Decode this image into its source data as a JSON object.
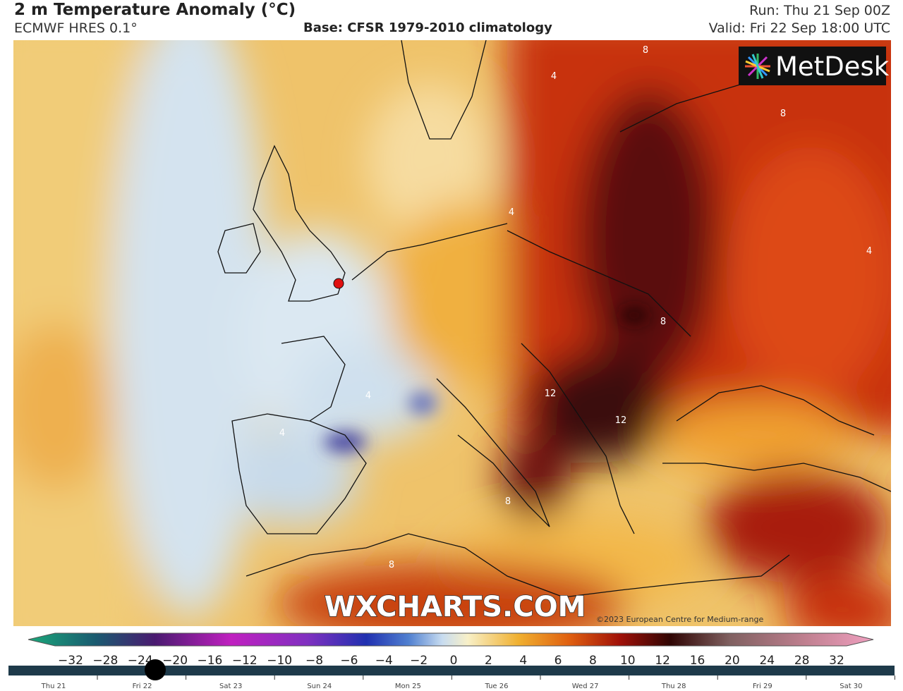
{
  "header": {
    "title": "2 m Temperature Anomaly (°C)",
    "model": "ECMWF HRES 0.1°",
    "base": "Base: CFSR 1979-2010 climatology",
    "run": "Run: Thu 21 Sep 00Z",
    "valid": "Valid: Fri 22 Sep 18:00 UTC"
  },
  "map": {
    "logo": "MetDesk",
    "watermark": "WXCHARTS.COM",
    "copyright": "©2023 European Centre for Medium-range",
    "contour_labels": [
      "4",
      "8",
      "8",
      "4",
      "8",
      "12",
      "12",
      "4",
      "4",
      "8",
      "8",
      "4"
    ]
  },
  "colorbar": {
    "ticks": [
      "−32",
      "−28",
      "−24",
      "−20",
      "−16",
      "−12",
      "−10",
      "−8",
      "−6",
      "−4",
      "−2",
      "0",
      "2",
      "4",
      "6",
      "8",
      "10",
      "12",
      "16",
      "20",
      "24",
      "28",
      "32"
    ]
  },
  "timeline": {
    "days": [
      "Thu 21",
      "Fri 22",
      "Sat 23",
      "Sun 24",
      "Mon 25",
      "Tue 26",
      "Wed 27",
      "Thu 28",
      "Fri 29",
      "Sat 30"
    ]
  }
}
